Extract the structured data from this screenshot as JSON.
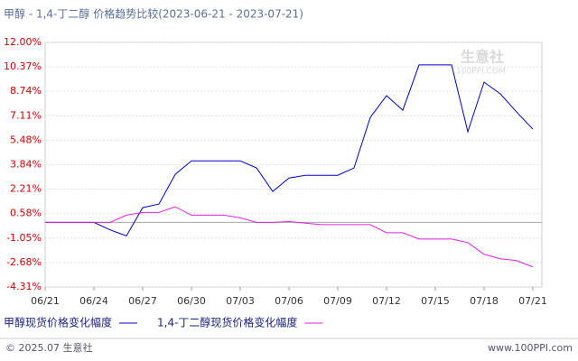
{
  "chart_data": {
    "type": "line",
    "title": "甲醇 - 1,4-丁二醇 价格趋势比较(2023-06-21 - 2023-07-21)",
    "watermark": "生意社",
    "watermark_sub": "100PPI.COM",
    "footer_left": "© 2025.07 生意社",
    "footer_right": "www.100PPI.com",
    "categories": [
      "06/21",
      null,
      null,
      "06/24",
      null,
      null,
      "06/27",
      null,
      null,
      "06/30",
      null,
      null,
      "07/03",
      null,
      null,
      "07/06",
      null,
      null,
      "07/09",
      null,
      null,
      "07/12",
      null,
      null,
      "07/15",
      null,
      null,
      "07/18",
      null,
      null,
      "07/21"
    ],
    "series": [
      {
        "name": "甲醇现货价格变化幅度",
        "color": "#0000cc",
        "values": [
          0,
          0,
          0,
          0,
          -0.5,
          -0.9,
          0.98,
          1.22,
          3.2,
          4.1,
          4.1,
          4.1,
          4.1,
          3.63,
          2.06,
          2.96,
          3.14,
          3.14,
          3.14,
          3.63,
          7.0,
          8.45,
          7.48,
          10.5,
          10.5,
          10.5,
          6.04,
          9.35,
          8.57,
          7.36,
          6.22
        ]
      },
      {
        "name": "1,4-丁二醇现货价格变化幅度",
        "color": "#e020e0",
        "values": [
          0,
          0,
          0,
          0,
          0,
          0.48,
          0.66,
          0.66,
          1.04,
          0.48,
          0.48,
          0.48,
          0.3,
          0,
          0,
          0.05,
          -0.05,
          -0.15,
          -0.15,
          -0.15,
          -0.15,
          -0.69,
          -0.69,
          -1.11,
          -1.11,
          -1.11,
          -1.35,
          -2.13,
          -2.43,
          -2.55,
          -2.97
        ]
      }
    ],
    "ylim": [
      -4.31,
      12
    ],
    "yticks": [
      {
        "value": -4.31,
        "label": "-4.31%"
      },
      {
        "value": -2.68,
        "label": "-2.68%"
      },
      {
        "value": -1.05,
        "label": "-1.05%"
      },
      {
        "value": 0.58,
        "label": "0.58%"
      },
      {
        "value": 2.21,
        "label": "2.21%"
      },
      {
        "value": 3.84,
        "label": "3.84%"
      },
      {
        "value": 5.48,
        "label": "5.48%"
      },
      {
        "value": 7.11,
        "label": "7.11%"
      },
      {
        "value": 8.74,
        "label": "8.74%"
      },
      {
        "value": 10.37,
        "label": "10.37%"
      },
      {
        "value": 12,
        "label": "12.00%"
      }
    ],
    "grid": true
  }
}
